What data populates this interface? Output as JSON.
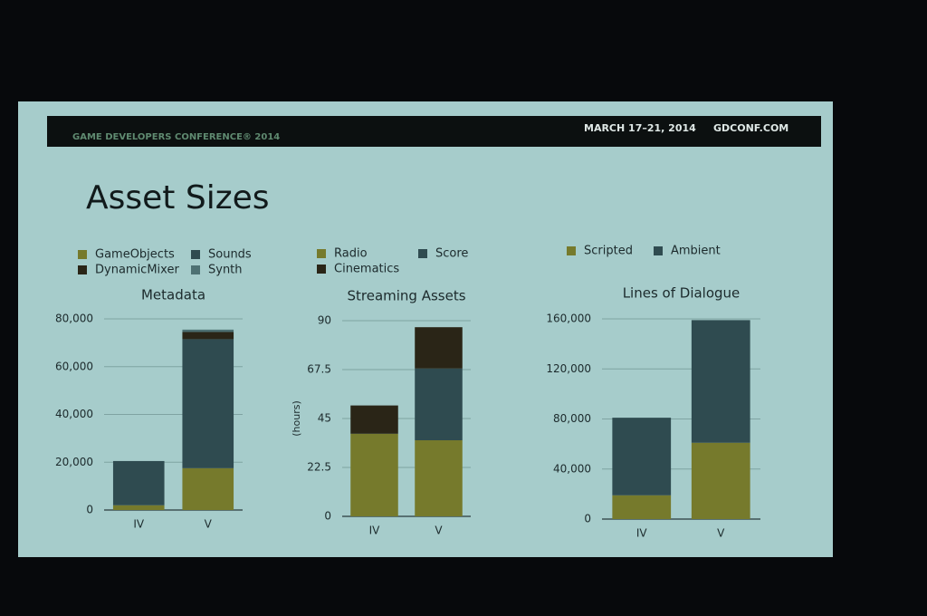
{
  "header": {
    "conference": "GAME DEVELOPERS CONFERENCE® 2014",
    "dates": "MARCH 17–21, 2014",
    "site": "GDCONF.COM",
    "title": "Asset Sizes"
  },
  "chart_data": [
    {
      "type": "stacked_bar",
      "title": "Metadata",
      "categories": [
        "IV",
        "V"
      ],
      "series": [
        {
          "name": "GameObjects",
          "color": "#767a2c",
          "values": [
            2000,
            17500
          ]
        },
        {
          "name": "Sounds",
          "color": "#2f4b50",
          "values": [
            18500,
            54000
          ]
        },
        {
          "name": "DynamicMixer",
          "color": "#2a2517",
          "values": [
            0,
            3000
          ]
        },
        {
          "name": "Synth",
          "color": "#4e7173",
          "values": [
            0,
            1000
          ]
        }
      ],
      "ylim": [
        0,
        80000
      ],
      "yticks": [
        0,
        {
          "value": 20000,
          "label": "20,000"
        },
        {
          "value": 40000,
          "label": "40,000"
        },
        {
          "value": 60000,
          "label": "60,000"
        },
        {
          "value": 80000,
          "label": "80,000"
        }
      ],
      "grid": true
    },
    {
      "type": "stacked_bar",
      "title": "Streaming Assets",
      "y_label": "(hours)",
      "categories": [
        "IV",
        "V"
      ],
      "series": [
        {
          "name": "Radio",
          "color": "#767a2c",
          "values": [
            38,
            35
          ]
        },
        {
          "name": "Score",
          "color": "#2f4b50",
          "values": [
            0,
            33
          ]
        },
        {
          "name": "Cinematics",
          "color": "#2a2517",
          "values": [
            13,
            19
          ]
        }
      ],
      "ylim": [
        0,
        90
      ],
      "yticks": [
        0,
        22.5,
        45,
        67.5,
        90
      ],
      "grid": true
    },
    {
      "type": "stacked_bar",
      "title": "Lines of Dialogue",
      "categories": [
        "IV",
        "V"
      ],
      "series": [
        {
          "name": "Scripted",
          "color": "#767a2c",
          "values": [
            19000,
            61000
          ]
        },
        {
          "name": "Ambient",
          "color": "#2f4b50",
          "values": [
            62000,
            98000
          ]
        }
      ],
      "ylim": [
        0,
        160000
      ],
      "yticks": [
        0,
        {
          "value": 40000,
          "label": "40,000"
        },
        {
          "value": 80000,
          "label": "80,000"
        },
        {
          "value": 120000,
          "label": "120,000"
        },
        {
          "value": 160000,
          "label": "160,000"
        }
      ],
      "grid": true
    }
  ]
}
